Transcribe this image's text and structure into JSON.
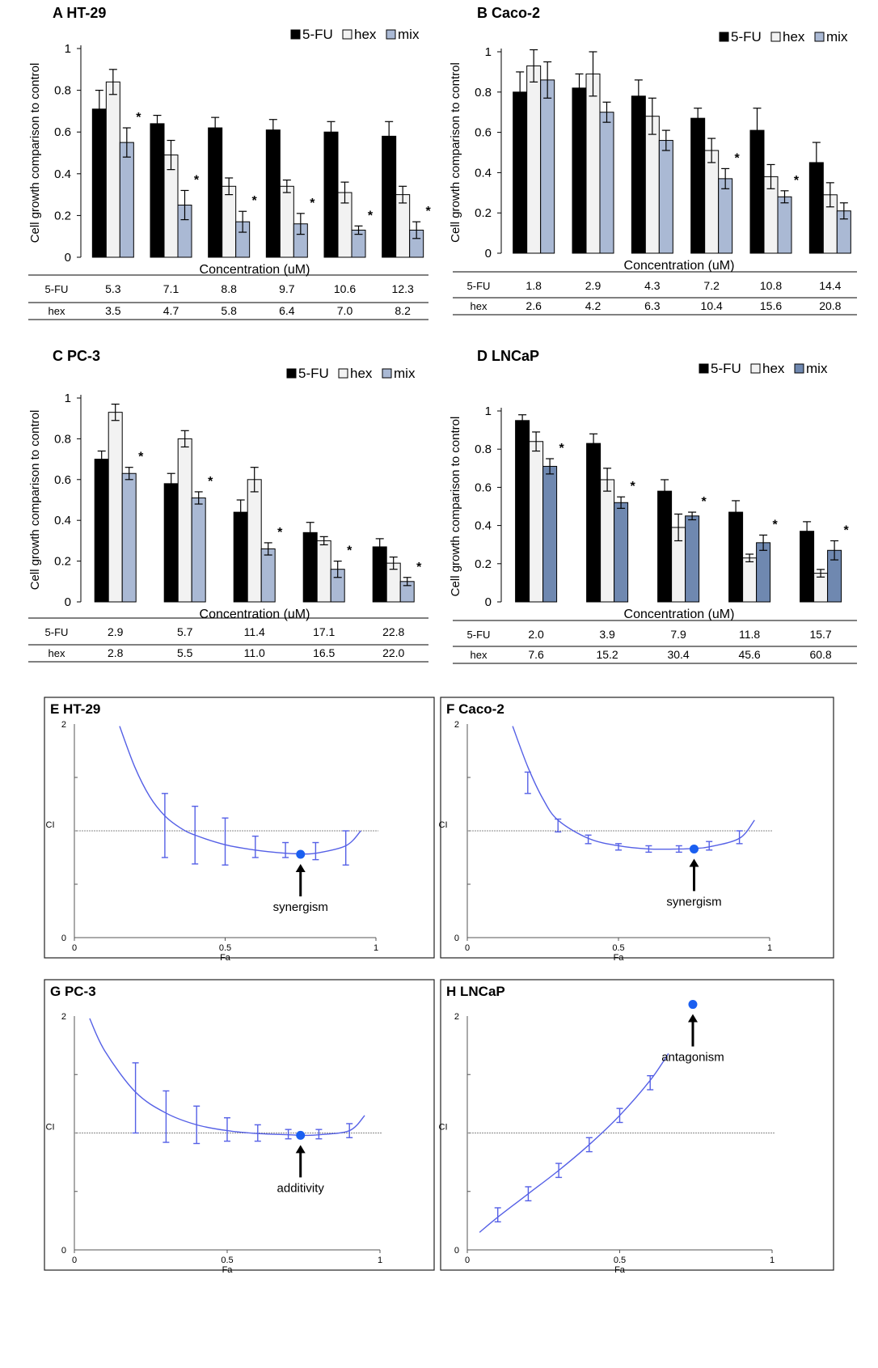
{
  "chart_data": [
    {
      "panel": "A",
      "type": "bar",
      "title": "HT-29",
      "ylabel": "Cell growth comparison  to control",
      "xlabel": "Concentration (uM)",
      "ylim": [
        0,
        1
      ],
      "yticks": [
        "0",
        "0.2",
        "0.4",
        "0.6",
        "0.8",
        "1"
      ],
      "legend_position": "top-right",
      "series": [
        {
          "name": "5-FU",
          "color": "#000000",
          "values": [
            0.71,
            0.64,
            0.62,
            0.61,
            0.6,
            0.58
          ],
          "errors": [
            0.09,
            0.04,
            0.05,
            0.05,
            0.05,
            0.07
          ]
        },
        {
          "name": "hex",
          "color": "#f2f2f2",
          "values": [
            0.84,
            0.49,
            0.34,
            0.34,
            0.31,
            0.3
          ],
          "errors": [
            0.06,
            0.07,
            0.04,
            0.03,
            0.05,
            0.04
          ]
        },
        {
          "name": "mix",
          "color": "#aab9d4",
          "values": [
            0.55,
            0.25,
            0.17,
            0.16,
            0.13,
            0.13
          ],
          "errors": [
            0.07,
            0.07,
            0.05,
            0.05,
            0.02,
            0.04
          ]
        }
      ],
      "stars": [
        "*",
        "*",
        "*",
        "*",
        "*",
        "*"
      ],
      "dose_rows": [
        {
          "label": "5-FU",
          "values": [
            "5.3",
            "7.1",
            "8.8",
            "9.7",
            "10.6",
            "12.3"
          ]
        },
        {
          "label": "hex",
          "values": [
            "3.5",
            "4.7",
            "5.8",
            "6.4",
            "7.0",
            "8.2"
          ]
        }
      ]
    },
    {
      "panel": "B",
      "type": "bar",
      "title": "Caco-2",
      "ylabel": "Cell growth comparison  to control",
      "xlabel": "Concentration (uM)",
      "ylim": [
        0,
        1
      ],
      "yticks": [
        "0",
        "0.2",
        "0.4",
        "0.6",
        "0.8",
        "1"
      ],
      "legend_position": "top-right",
      "series": [
        {
          "name": "5-FU",
          "color": "#000000",
          "values": [
            0.8,
            0.82,
            0.78,
            0.67,
            0.61,
            0.45
          ],
          "errors": [
            0.1,
            0.07,
            0.08,
            0.05,
            0.11,
            0.1
          ]
        },
        {
          "name": "hex",
          "color": "#f2f2f2",
          "values": [
            0.93,
            0.89,
            0.68,
            0.51,
            0.38,
            0.29
          ],
          "errors": [
            0.08,
            0.11,
            0.09,
            0.06,
            0.06,
            0.06
          ]
        },
        {
          "name": "mix",
          "color": "#aab9d4",
          "values": [
            0.86,
            0.7,
            0.56,
            0.37,
            0.28,
            0.21
          ],
          "errors": [
            0.09,
            0.05,
            0.05,
            0.05,
            0.03,
            0.04
          ]
        }
      ],
      "stars": [
        "",
        "",
        "",
        "*",
        "*",
        ""
      ],
      "dose_rows": [
        {
          "label": "5-FU",
          "values": [
            "1.8",
            "2.9",
            "4.3",
            "7.2",
            "10.8",
            "14.4"
          ]
        },
        {
          "label": "hex",
          "values": [
            "2.6",
            "4.2",
            "6.3",
            "10.4",
            "15.6",
            "20.8"
          ]
        }
      ]
    },
    {
      "panel": "C",
      "type": "bar",
      "title": "PC-3",
      "ylabel": "Cell growth comparison  to control",
      "xlabel": "Concentration  (uM)",
      "ylim": [
        0,
        1
      ],
      "yticks": [
        "0",
        "0.2",
        "0.4",
        "0.6",
        "0.8",
        "1"
      ],
      "legend_position": "top-right",
      "series": [
        {
          "name": "5-FU",
          "color": "#000000",
          "values": [
            0.7,
            0.58,
            0.44,
            0.34,
            0.27
          ],
          "errors": [
            0.04,
            0.05,
            0.06,
            0.05,
            0.04
          ]
        },
        {
          "name": "hex",
          "color": "#f2f2f2",
          "values": [
            0.93,
            0.8,
            0.6,
            0.3,
            0.19
          ],
          "errors": [
            0.04,
            0.04,
            0.06,
            0.02,
            0.03
          ]
        },
        {
          "name": "mix",
          "color": "#aab9d4",
          "values": [
            0.63,
            0.51,
            0.26,
            0.16,
            0.1
          ],
          "errors": [
            0.03,
            0.03,
            0.03,
            0.04,
            0.02
          ]
        }
      ],
      "stars": [
        "*",
        "*",
        "*",
        "*",
        "*"
      ],
      "dose_rows": [
        {
          "label": "5-FU",
          "values": [
            "2.9",
            "5.7",
            "11.4",
            "17.1",
            "22.8"
          ]
        },
        {
          "label": "hex",
          "values": [
            "2.8",
            "5.5",
            "11.0",
            "16.5",
            "22.0"
          ]
        }
      ]
    },
    {
      "panel": "D",
      "type": "bar",
      "title": "LNCaP",
      "ylabel": "Cell growth comparison  to control",
      "xlabel": "Concentration  (uM)",
      "ylim": [
        0,
        1
      ],
      "yticks": [
        "0",
        "0.2",
        "0.4",
        "0.6",
        "0.8",
        "1"
      ],
      "legend_position": "top-right",
      "series": [
        {
          "name": "5-FU",
          "color": "#000000",
          "values": [
            0.95,
            0.83,
            0.58,
            0.47,
            0.37
          ],
          "errors": [
            0.03,
            0.05,
            0.06,
            0.06,
            0.05
          ]
        },
        {
          "name": "hex",
          "color": "#f2f2f2",
          "values": [
            0.84,
            0.64,
            0.39,
            0.23,
            0.15
          ],
          "errors": [
            0.05,
            0.06,
            0.07,
            0.02,
            0.02
          ]
        },
        {
          "name": "mix",
          "color": "#6f88b0",
          "values": [
            0.71,
            0.52,
            0.45,
            0.31,
            0.27
          ],
          "errors": [
            0.04,
            0.03,
            0.02,
            0.04,
            0.05
          ]
        }
      ],
      "stars": [
        "*",
        "*",
        "*",
        "*",
        "*"
      ],
      "dose_rows": [
        {
          "label": "5-FU",
          "values": [
            "2.0",
            "3.9",
            "7.9",
            "11.8",
            "15.7"
          ]
        },
        {
          "label": "hex",
          "values": [
            "7.6",
            "15.2",
            "30.4",
            "45.6",
            "60.8"
          ]
        }
      ]
    },
    {
      "panel": "E",
      "type": "line",
      "title": "HT-29",
      "ylabel": "CI",
      "xlabel": "Fa",
      "xlim": [
        0,
        1
      ],
      "ylim": [
        0,
        2
      ],
      "xticks": [
        "0",
        "0.5",
        "1"
      ],
      "yticks": [
        "0",
        "2"
      ],
      "reference_line": 1,
      "curve": {
        "x": [
          0.15,
          0.2,
          0.25,
          0.3,
          0.35,
          0.4,
          0.5,
          0.6,
          0.7,
          0.75,
          0.8,
          0.9,
          0.95
        ],
        "y": [
          1.98,
          1.6,
          1.32,
          1.14,
          1.03,
          0.96,
          0.87,
          0.82,
          0.79,
          0.785,
          0.79,
          0.86,
          1.0
        ]
      },
      "error_bars": {
        "x": [
          0.3,
          0.4,
          0.5,
          0.6,
          0.7,
          0.8,
          0.9
        ],
        "y": [
          1.05,
          0.96,
          0.9,
          0.85,
          0.82,
          0.81,
          0.84
        ],
        "err": [
          0.3,
          0.27,
          0.22,
          0.1,
          0.07,
          0.08,
          0.16
        ]
      },
      "marker": {
        "x": 0.75,
        "y": 0.78
      },
      "annotation": "synergism"
    },
    {
      "panel": "F",
      "type": "line",
      "title": "Caco-2",
      "ylabel": "CI",
      "xlabel": "Fa",
      "xlim": [
        0,
        1
      ],
      "ylim": [
        0,
        2
      ],
      "xticks": [
        "0",
        "0.5",
        "1"
      ],
      "yticks": [
        "0",
        "2"
      ],
      "reference_line": 1,
      "curve": {
        "x": [
          0.15,
          0.2,
          0.25,
          0.3,
          0.4,
          0.5,
          0.6,
          0.7,
          0.75,
          0.8,
          0.9,
          0.95
        ],
        "y": [
          1.98,
          1.6,
          1.3,
          1.1,
          0.93,
          0.86,
          0.83,
          0.83,
          0.835,
          0.85,
          0.93,
          1.1
        ]
      },
      "error_bars": {
        "x": [
          0.2,
          0.3,
          0.4,
          0.5,
          0.6,
          0.7,
          0.8,
          0.9
        ],
        "y": [
          1.45,
          1.05,
          0.92,
          0.85,
          0.83,
          0.83,
          0.86,
          0.94
        ],
        "err": [
          0.1,
          0.06,
          0.04,
          0.03,
          0.03,
          0.03,
          0.04,
          0.06
        ]
      },
      "marker": {
        "x": 0.75,
        "y": 0.83
      },
      "annotation": "synergism"
    },
    {
      "panel": "G",
      "type": "line",
      "title": "PC-3",
      "ylabel": "CI",
      "xlabel": "Fa",
      "xlim": [
        0,
        1
      ],
      "ylim": [
        0,
        2
      ],
      "xticks": [
        "0",
        "0.5",
        "1"
      ],
      "yticks": [
        "0",
        "2"
      ],
      "reference_line": 1,
      "curve": {
        "x": [
          0.05,
          0.1,
          0.2,
          0.3,
          0.4,
          0.5,
          0.6,
          0.7,
          0.75,
          0.8,
          0.9,
          0.95
        ],
        "y": [
          1.98,
          1.7,
          1.35,
          1.17,
          1.07,
          1.02,
          0.995,
          0.985,
          0.98,
          0.985,
          1.02,
          1.15
        ]
      },
      "error_bars": {
        "x": [
          0.2,
          0.3,
          0.4,
          0.5,
          0.6,
          0.7,
          0.8,
          0.9
        ],
        "y": [
          1.3,
          1.14,
          1.07,
          1.03,
          1.0,
          0.99,
          0.99,
          1.02
        ],
        "err": [
          0.3,
          0.22,
          0.16,
          0.1,
          0.07,
          0.04,
          0.04,
          0.06
        ]
      },
      "marker": {
        "x": 0.74,
        "y": 0.98
      },
      "annotation": "additivity"
    },
    {
      "panel": "H",
      "type": "line",
      "title": "LNCaP",
      "ylabel": "CI",
      "xlabel": "Fa",
      "xlim": [
        0,
        1
      ],
      "ylim": [
        0,
        2
      ],
      "xticks": [
        "0",
        "0.5",
        "1"
      ],
      "yticks": [
        "0",
        "2"
      ],
      "reference_line": 1,
      "curve": {
        "x": [
          0.04,
          0.1,
          0.2,
          0.3,
          0.4,
          0.5,
          0.6,
          0.66
        ],
        "y": [
          0.15,
          0.28,
          0.48,
          0.68,
          0.9,
          1.15,
          1.45,
          1.68
        ]
      },
      "error_bars": {
        "x": [
          0.1,
          0.2,
          0.3,
          0.4,
          0.5,
          0.6
        ],
        "y": [
          0.3,
          0.48,
          0.68,
          0.9,
          1.15,
          1.43
        ],
        "err": [
          0.06,
          0.06,
          0.06,
          0.06,
          0.06,
          0.06
        ]
      },
      "marker": {
        "x": 0.74,
        "y": 2.1
      },
      "annotation": "antagonism"
    }
  ]
}
